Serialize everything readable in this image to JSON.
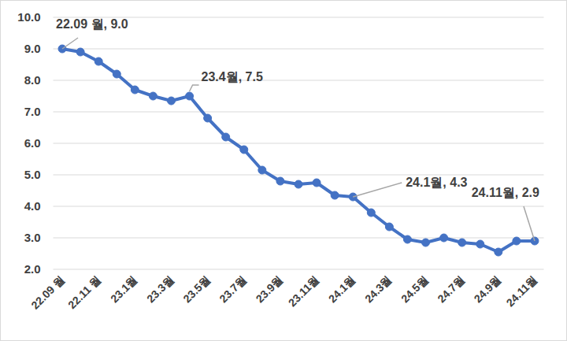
{
  "chart_data": {
    "type": "line",
    "categories": [
      "22.09 월",
      null,
      "22.11 월",
      null,
      "23.1월",
      null,
      "23.3월",
      null,
      "23.5월",
      null,
      "23.7월",
      null,
      "23.9월",
      null,
      "23.11월",
      null,
      "24.1월",
      null,
      "24.3월",
      null,
      "24.5월",
      null,
      "24.7월",
      null,
      "24.9월",
      null,
      "24.11월"
    ],
    "values": [
      9.0,
      8.9,
      8.6,
      8.2,
      7.7,
      7.5,
      7.35,
      7.5,
      6.8,
      6.2,
      5.8,
      5.15,
      4.8,
      4.7,
      4.75,
      4.35,
      4.3,
      3.8,
      3.35,
      2.95,
      2.85,
      3.0,
      2.85,
      2.8,
      2.55,
      2.9,
      2.9
    ],
    "color": "#4472c4",
    "marker": "circle",
    "ylim": [
      2,
      10
    ],
    "yticks": [
      {
        "value": 2,
        "label": "2.0"
      },
      {
        "value": 3,
        "label": "3.0"
      },
      {
        "value": 4,
        "label": "4.0"
      },
      {
        "value": 5,
        "label": "5.0"
      },
      {
        "value": 6,
        "label": "6.0"
      },
      {
        "value": 7,
        "label": "7.0"
      },
      {
        "value": 8,
        "label": "8.0"
      },
      {
        "value": 9,
        "label": "9.0"
      },
      {
        "value": 10,
        "label": "10.0"
      }
    ],
    "grid": true,
    "annotations": [
      {
        "text": "22.09 월, 9.0",
        "index": 0
      },
      {
        "text": "23.4월, 7.5",
        "index": 7
      },
      {
        "text": "24.1월, 4.3",
        "index": 16
      },
      {
        "text": "24.11월, 2.9",
        "index": 26
      }
    ]
  }
}
